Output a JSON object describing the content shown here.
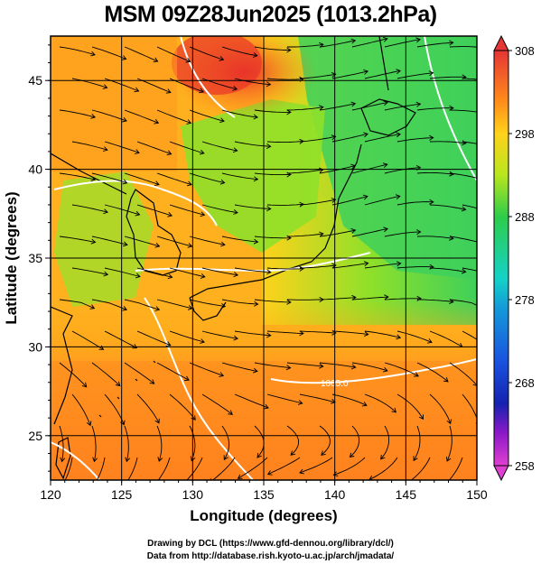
{
  "title": "MSM 09Z28Jun2025 (1013.2hPa)",
  "xlabel": "Longitude (degrees)",
  "ylabel": "Latitude  (degrees)",
  "x_ticks": [
    "120",
    "125",
    "130",
    "135",
    "140",
    "145",
    "150"
  ],
  "y_ticks": [
    "25",
    "30",
    "35",
    "40",
    "45"
  ],
  "colorbar_ticks": [
    "308",
    "298",
    "288",
    "278",
    "268",
    "258"
  ],
  "contour_label": "1005.0",
  "credits": {
    "line1": "Drawing by DCL (https://www.gfd-dennou.org/library/dcl/)",
    "line2": "Data from http://database.rish.kyoto-u.ac.jp/arch/jmadata/"
  },
  "colors": {
    "warm": "#ff7a1e",
    "hot": "#e8342a",
    "mid": "#ffd21a",
    "cool": "#6ee028",
    "ocean_green": "#3fd05a",
    "colorbar_top": "#e63a3a",
    "colorbar_bottom": "#e040d0"
  },
  "map_extent": {
    "lon": [
      120,
      150
    ],
    "lat": [
      22.5,
      47.5
    ]
  },
  "colorbar_range": [
    258,
    308
  ]
}
